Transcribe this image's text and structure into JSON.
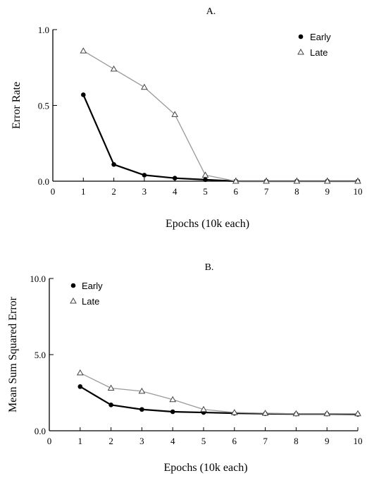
{
  "chart_data": [
    {
      "type": "line",
      "title": "A.",
      "xlabel": "Epochs (10k each)",
      "ylabel": "Error Rate",
      "xlim": [
        0,
        10
      ],
      "ylim": [
        0,
        1.0
      ],
      "x_ticks": [
        0,
        1,
        2,
        3,
        4,
        5,
        6,
        7,
        8,
        9,
        10
      ],
      "y_ticks": [
        0.0,
        0.5,
        1.0
      ],
      "y_tick_labels": [
        "0.0",
        "0.5",
        "1.0"
      ],
      "legend_position": "top-right",
      "x": [
        1,
        2,
        3,
        4,
        5,
        6,
        7,
        8,
        9,
        10
      ],
      "series": [
        {
          "name": "Early",
          "marker": "filled-circle",
          "stroke": "#000000",
          "values": [
            0.57,
            0.11,
            0.04,
            0.02,
            0.01,
            0.0,
            0.0,
            0.0,
            0.0,
            0.0
          ]
        },
        {
          "name": "Late",
          "marker": "open-triangle",
          "stroke": "#999999",
          "values": [
            0.86,
            0.74,
            0.62,
            0.44,
            0.04,
            0.0,
            0.0,
            0.0,
            0.0,
            0.0
          ]
        }
      ]
    },
    {
      "type": "line",
      "title": "B.",
      "xlabel": "Epochs (10k each)",
      "ylabel": "Mean Sum Squared Error",
      "xlim": [
        0,
        10
      ],
      "ylim": [
        0,
        10.0
      ],
      "x_ticks": [
        0,
        1,
        2,
        3,
        4,
        5,
        6,
        7,
        8,
        9,
        10
      ],
      "y_ticks": [
        0.0,
        5.0,
        10.0
      ],
      "y_tick_labels": [
        "0.0",
        "5.0",
        "10.0"
      ],
      "legend_position": "top-left",
      "x": [
        1,
        2,
        3,
        4,
        5,
        6,
        7,
        8,
        9,
        10
      ],
      "series": [
        {
          "name": "Early",
          "marker": "filled-circle",
          "stroke": "#000000",
          "values": [
            2.9,
            1.7,
            1.4,
            1.25,
            1.2,
            1.15,
            1.12,
            1.1,
            1.1,
            1.08
          ]
        },
        {
          "name": "Late",
          "marker": "open-triangle",
          "stroke": "#999999",
          "values": [
            3.8,
            2.8,
            2.6,
            2.05,
            1.4,
            1.2,
            1.15,
            1.12,
            1.12,
            1.12
          ]
        }
      ]
    }
  ]
}
